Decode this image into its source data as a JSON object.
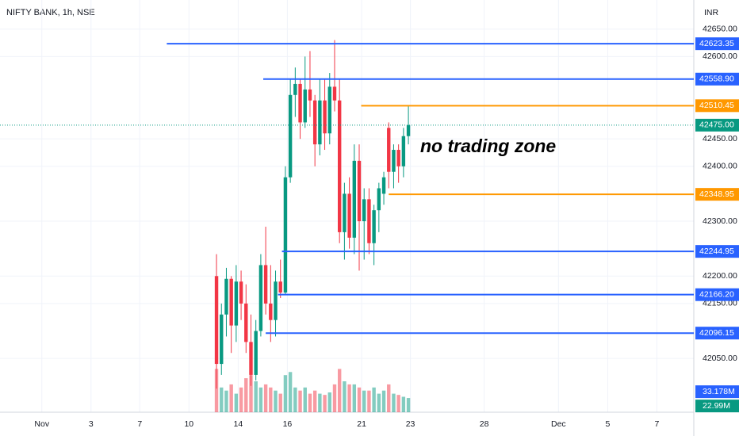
{
  "chart_data": {
    "type": "candlestick",
    "title": "NIFTY BANK, 1h, NSE",
    "currency": "INR",
    "annotation": "no trading zone",
    "x": [
      44,
      45,
      46,
      47,
      48,
      49,
      50,
      51,
      52,
      53,
      54,
      55,
      56,
      57,
      58,
      59,
      60,
      61,
      62,
      63,
      64,
      65,
      66,
      67,
      68,
      69,
      70,
      71,
      72,
      73,
      74,
      75,
      76,
      77,
      78,
      79,
      80,
      81,
      82,
      83
    ],
    "open": [
      42200,
      42040,
      42130,
      42195,
      42110,
      42190,
      42150,
      42080,
      42020,
      42100,
      42220,
      42150,
      42120,
      42190,
      42170,
      42380,
      42530,
      42550,
      42480,
      42540,
      42520,
      42440,
      42520,
      42460,
      42545,
      42520,
      42280,
      42350,
      42270,
      42410,
      42300,
      42340,
      42260,
      42320,
      42350,
      42470,
      42390,
      42430,
      42400,
      42455
    ],
    "high": [
      42240,
      42150,
      42215,
      42200,
      42220,
      42210,
      42185,
      42130,
      42120,
      42240,
      42290,
      42220,
      42210,
      42230,
      42400,
      42560,
      42580,
      42560,
      42600,
      42610,
      42530,
      42560,
      42560,
      42570,
      42630,
      42560,
      42370,
      42380,
      42440,
      42440,
      42360,
      42360,
      42330,
      42370,
      42390,
      42480,
      42440,
      42440,
      42470,
      42510
    ],
    "low": [
      41995,
      42020,
      42090,
      42060,
      42080,
      42120,
      42060,
      42000,
      42010,
      42090,
      42130,
      42080,
      42090,
      42160,
      42165,
      42370,
      42490,
      42450,
      42470,
      42490,
      42400,
      42420,
      42430,
      42440,
      42500,
      42260,
      42230,
      42250,
      42240,
      42210,
      42230,
      42240,
      42220,
      42280,
      42330,
      42360,
      42360,
      42370,
      42380,
      42440
    ],
    "close": [
      42040,
      42130,
      42195,
      42110,
      42190,
      42150,
      42080,
      42020,
      42100,
      42220,
      42150,
      42120,
      42190,
      42170,
      42380,
      42530,
      42550,
      42480,
      42540,
      42520,
      42440,
      42520,
      42460,
      42545,
      42520,
      42280,
      42350,
      42270,
      42410,
      42300,
      42340,
      42260,
      42320,
      42360,
      42380,
      42390,
      42430,
      42400,
      42455,
      42475
    ],
    "volume": [
      70,
      40,
      35,
      45,
      30,
      40,
      55,
      60,
      50,
      40,
      45,
      40,
      35,
      30,
      60,
      65,
      40,
      35,
      40,
      30,
      35,
      30,
      28,
      32,
      45,
      70,
      50,
      45,
      45,
      40,
      35,
      35,
      40,
      30,
      35,
      45,
      30,
      28,
      25,
      22.99
    ],
    "last_volume_label": "22.99M",
    "volume_ma": {
      "value": 33.178,
      "label": "33.178M"
    },
    "volume_lim": [
      0,
      200
    ],
    "up_color": "#089981",
    "down_color": "#f23645",
    "xlim": [
      0,
      141
    ],
    "xticks": [
      {
        "value": 8.5,
        "label": "Nov"
      },
      {
        "value": 18.5,
        "label": "3"
      },
      {
        "value": 28.4,
        "label": "7"
      },
      {
        "value": 38.4,
        "label": "10"
      },
      {
        "value": 48.4,
        "label": "14"
      },
      {
        "value": 58.4,
        "label": "16"
      },
      {
        "value": 73.5,
        "label": "21"
      },
      {
        "value": 83.4,
        "label": "23"
      },
      {
        "value": 98.4,
        "label": "28"
      },
      {
        "value": 113.5,
        "label": "Dec"
      },
      {
        "value": 123.5,
        "label": "5"
      },
      {
        "value": 133.5,
        "label": "7"
      }
    ],
    "ylim": [
      41952,
      42703
    ],
    "yticks": [
      {
        "value": 42650,
        "label": "42650.00"
      },
      {
        "value": 42600,
        "label": "42600.00"
      },
      {
        "value": 42450,
        "label": "42450.00"
      },
      {
        "value": 42400,
        "label": "42400.00"
      },
      {
        "value": 42300,
        "label": "42300.00"
      },
      {
        "value": 42200,
        "label": "42200.00"
      },
      {
        "value": 42150,
        "label": "42150.00"
      },
      {
        "value": 42050,
        "label": "42050.00"
      }
    ],
    "grid": true,
    "levels": [
      {
        "price": 42623.35,
        "start": 33.9,
        "color": "#2962ff"
      },
      {
        "price": 42558.9,
        "label": "42558.90",
        "start": 53.5,
        "color": "#2962ff"
      },
      {
        "price": 42510.45,
        "start": 73.4,
        "color": "#ff9800"
      },
      {
        "price": 42348.95,
        "start": 79,
        "color": "#ff9800"
      },
      {
        "price": 42244.95,
        "start": 57.3,
        "color": "#2962ff"
      },
      {
        "price": 42166.2,
        "label": "42166.20",
        "start": 56.5,
        "color": "#2962ff"
      },
      {
        "price": 42096.15,
        "start": 54,
        "color": "#2962ff"
      }
    ],
    "last_price": {
      "value": 42475,
      "label": "42475.00",
      "color": "#089981"
    }
  }
}
